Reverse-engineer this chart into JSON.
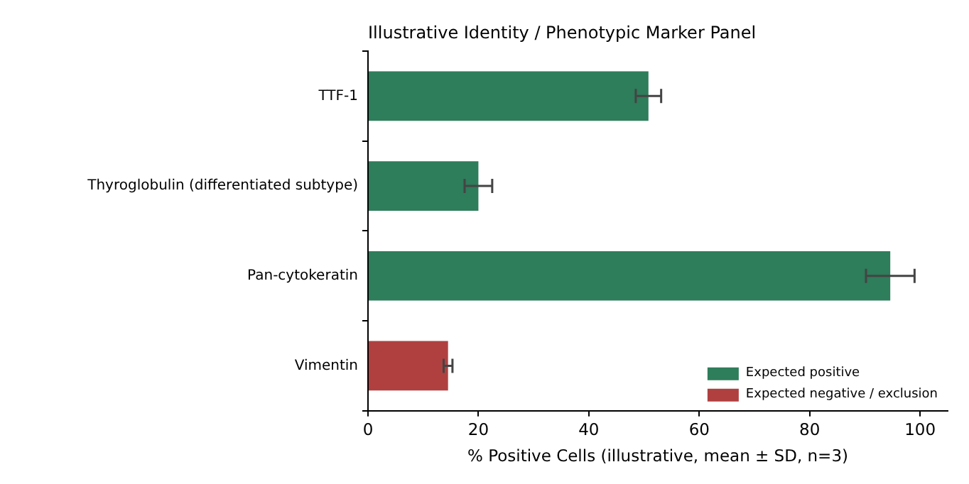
{
  "chart_data": {
    "type": "bar",
    "orientation": "horizontal",
    "title": "Illustrative Identity / Phenotypic Marker Panel",
    "xlabel": "% Positive Cells (illustrative, mean ± SD, n=3)",
    "categories": [
      "TTF-1",
      "Thyroglobulin (differentiated subtype)",
      "Pan-cytokeratin",
      "Vimentin"
    ],
    "series": [
      {
        "name": "Expected positive",
        "color": "#2e7d5b",
        "values": [
          50.8,
          20.0,
          94.6,
          null
        ],
        "errors": [
          2.3,
          2.5,
          4.4,
          null
        ]
      },
      {
        "name": "Expected negative / exclusion",
        "color": "#b04040",
        "values": [
          null,
          null,
          null,
          14.5
        ],
        "errors": [
          null,
          null,
          null,
          0.8
        ]
      }
    ],
    "xlim": [
      0,
      105
    ],
    "xticks": [
      0,
      20,
      40,
      60,
      80,
      100
    ],
    "grid": false,
    "legend": "bottom right"
  }
}
